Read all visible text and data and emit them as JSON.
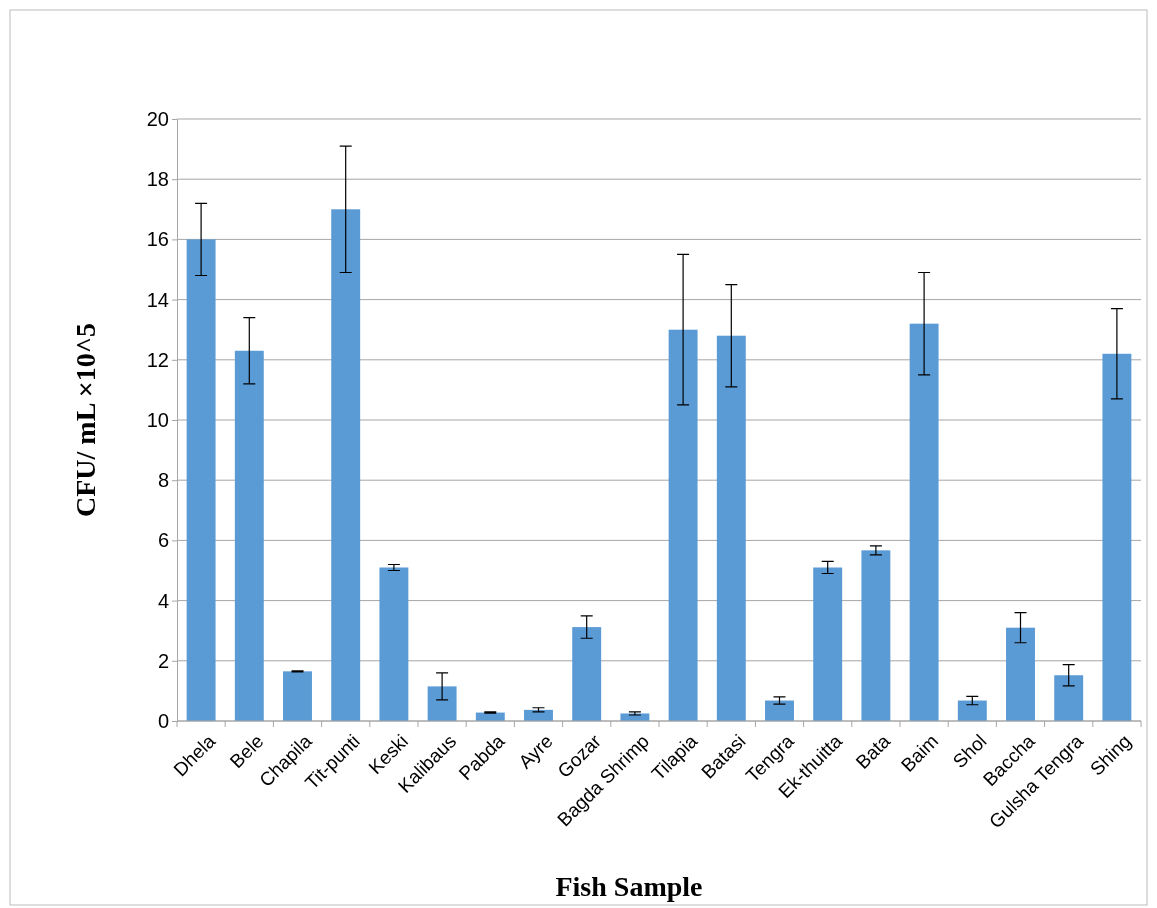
{
  "chart_data": {
    "type": "bar",
    "xlabel": "Fish Sample",
    "ylabel": "CFU/ mL ×10^5",
    "categories": [
      "Dhela",
      "Bele",
      "Chapila",
      "Tit-punti",
      "Keski",
      "Kalibaus",
      "Pabda",
      "Ayre",
      "Gozar",
      "Bagda Shrimp",
      "Tilapia",
      "Batasi",
      "Tengra",
      "Ek-thuitta",
      "Bata",
      "Baim",
      "Shol",
      "Baccha",
      "Gulsha Tengra",
      "Shing"
    ],
    "values": [
      16,
      12.3,
      1.65,
      17,
      5.1,
      1.15,
      0.28,
      0.37,
      3.12,
      0.25,
      13,
      12.8,
      0.68,
      5.1,
      5.67,
      13.2,
      0.68,
      3.1,
      1.52,
      12.2
    ],
    "errors": [
      1.2,
      1.1,
      0.02,
      2.1,
      0.1,
      0.45,
      0.02,
      0.07,
      0.37,
      0.05,
      2.5,
      1.7,
      0.12,
      0.2,
      0.15,
      1.7,
      0.14,
      0.5,
      0.35,
      1.5
    ],
    "color": "#5b9bd5",
    "ylim": [
      0,
      20
    ],
    "yticks": [
      0,
      2,
      4,
      6,
      8,
      10,
      12,
      14,
      16,
      18,
      20
    ],
    "grid": "y"
  }
}
